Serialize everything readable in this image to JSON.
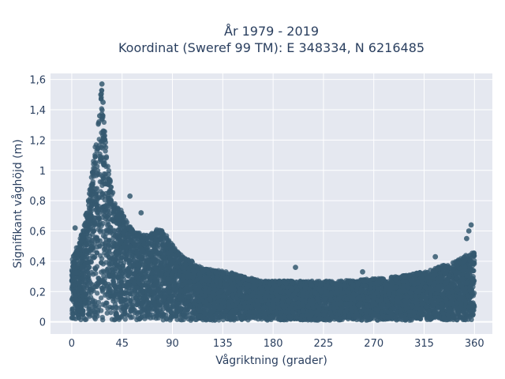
{
  "chart_data": {
    "type": "scatter",
    "title_line1": "År 1979 - 2019",
    "title_line2": "Koordinat (Sweref 99 TM): E 348334, N 6216485",
    "xlabel": "Vågriktning (grader)",
    "ylabel": "Signifikant våghöjd (m)",
    "xlim": [
      -19,
      376
    ],
    "ylim": [
      -0.08,
      1.64
    ],
    "xticks": [
      0,
      45,
      90,
      135,
      180,
      225,
      270,
      315,
      360
    ],
    "xtick_labels": [
      "0",
      "45",
      "90",
      "135",
      "180",
      "225",
      "270",
      "315",
      "360"
    ],
    "yticks": [
      0,
      0.2,
      0.4,
      0.6,
      0.8,
      1.0,
      1.2,
      1.4,
      1.6
    ],
    "ytick_labels": [
      "0",
      "0,2",
      "0,4",
      "0,6",
      "0,8",
      "1",
      "1,2",
      "1,4",
      "1,6"
    ],
    "grid": true,
    "marker_color": "#34586f",
    "background_color": "#e5e8f0",
    "envelope": {
      "x": [
        0,
        5,
        10,
        15,
        20,
        25,
        27,
        30,
        35,
        40,
        45,
        50,
        55,
        60,
        65,
        70,
        75,
        80,
        85,
        90,
        95,
        100,
        105,
        110,
        115,
        120,
        130,
        140,
        150,
        160,
        170,
        180,
        200,
        220,
        240,
        260,
        280,
        300,
        320,
        330,
        340,
        345,
        350,
        355,
        360
      ],
      "ymax": [
        0.4,
        0.5,
        0.6,
        0.8,
        1.1,
        1.4,
        1.57,
        1.2,
        0.9,
        0.78,
        0.72,
        0.64,
        0.6,
        0.58,
        0.56,
        0.57,
        0.6,
        0.6,
        0.56,
        0.5,
        0.45,
        0.42,
        0.4,
        0.38,
        0.35,
        0.34,
        0.33,
        0.32,
        0.3,
        0.28,
        0.26,
        0.26,
        0.26,
        0.26,
        0.26,
        0.27,
        0.28,
        0.3,
        0.33,
        0.36,
        0.38,
        0.4,
        0.42,
        0.44,
        0.45
      ]
    },
    "outliers": [
      {
        "x": 27,
        "y": 1.57
      },
      {
        "x": 26,
        "y": 1.5
      },
      {
        "x": 28,
        "y": 1.45
      },
      {
        "x": 25,
        "y": 1.36
      },
      {
        "x": 52,
        "y": 0.83
      },
      {
        "x": 15,
        "y": 0.8
      },
      {
        "x": 62,
        "y": 0.72
      },
      {
        "x": 3,
        "y": 0.62
      },
      {
        "x": 357,
        "y": 0.64
      },
      {
        "x": 355,
        "y": 0.6
      },
      {
        "x": 353,
        "y": 0.55
      },
      {
        "x": 325,
        "y": 0.43
      },
      {
        "x": 200,
        "y": 0.36
      },
      {
        "x": 260,
        "y": 0.33
      }
    ]
  }
}
